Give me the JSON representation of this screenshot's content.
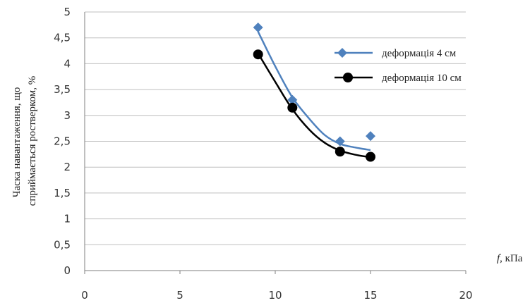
{
  "chart_data": {
    "type": "scatter",
    "xlabel": "f, кПа",
    "ylabel_lines": [
      "Часка навантаження, що",
      "сприймається ростверком, %"
    ],
    "xlim": [
      0,
      20
    ],
    "ylim": [
      0,
      5
    ],
    "x_ticks": [
      "0",
      "5",
      "10",
      "15",
      "20"
    ],
    "y_ticks": [
      "0",
      "0,5",
      "1",
      "1,5",
      "2",
      "2,5",
      "3",
      "3,5",
      "4",
      "4,5",
      "5"
    ],
    "grid": "horizontal",
    "legend_position": "right",
    "series": [
      {
        "name": "деформація 4 см",
        "color": "#4F81BD",
        "marker": "diamond",
        "points": [
          [
            9.1,
            4.7
          ],
          [
            10.9,
            3.3
          ],
          [
            13.4,
            2.5
          ],
          [
            15.0,
            2.6
          ]
        ],
        "trend": [
          [
            9.1,
            4.62
          ],
          [
            10.0,
            3.95
          ],
          [
            10.9,
            3.35
          ],
          [
            11.8,
            2.93
          ],
          [
            12.6,
            2.62
          ],
          [
            13.4,
            2.45
          ],
          [
            14.2,
            2.38
          ],
          [
            15.0,
            2.33
          ]
        ]
      },
      {
        "name": "деформація 10 см",
        "color": "#000000",
        "marker": "circle",
        "points": [
          [
            9.1,
            4.18
          ],
          [
            10.9,
            3.15
          ],
          [
            13.4,
            2.3
          ],
          [
            15.0,
            2.2
          ]
        ],
        "trend": [
          [
            9.1,
            4.2
          ],
          [
            10.0,
            3.65
          ],
          [
            10.9,
            3.12
          ],
          [
            11.8,
            2.72
          ],
          [
            12.6,
            2.47
          ],
          [
            13.4,
            2.32
          ],
          [
            14.2,
            2.24
          ],
          [
            15.0,
            2.19
          ]
        ]
      }
    ]
  }
}
